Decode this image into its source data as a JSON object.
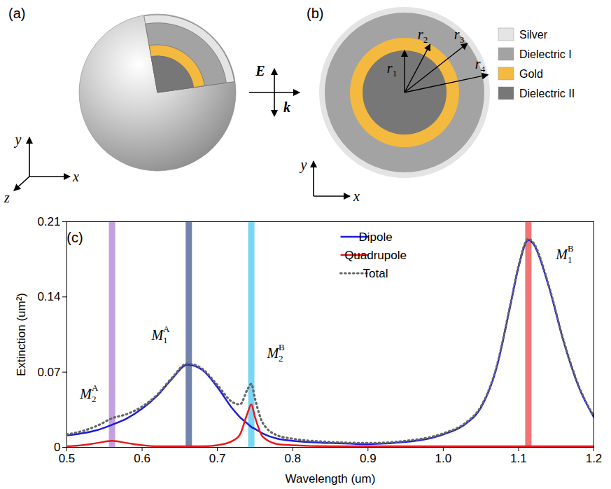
{
  "diagram": {
    "panel_a": {
      "label": "(a)",
      "axes": {
        "x": "x",
        "y": "y",
        "z": "z"
      }
    },
    "incident_wave": {
      "field": "E",
      "wavevector": "k"
    },
    "panel_b": {
      "label": "(b)",
      "axes": {
        "x": "x",
        "y": "y"
      },
      "radii": [
        {
          "text": "r",
          "sub": "1"
        },
        {
          "text": "r",
          "sub": "2"
        },
        {
          "text": "r",
          "sub": "3"
        },
        {
          "text": "r",
          "sub": "4"
        }
      ]
    },
    "materials": [
      {
        "name": "Silver",
        "color": "#e4e4e4"
      },
      {
        "name": "Dielectric I",
        "color": "#a3a3a3"
      },
      {
        "name": "Gold",
        "color": "#f4b93f"
      },
      {
        "name": "Dielectric II",
        "color": "#777777"
      }
    ]
  },
  "chart_data": {
    "type": "line",
    "panel_label": "(c)",
    "xlabel": "Wavelength (um)",
    "ylabel": "Extinction (um²)",
    "xlim": [
      0.5,
      1.2
    ],
    "ylim": [
      0,
      0.21
    ],
    "xticks": [
      0.5,
      0.6,
      0.7,
      0.8,
      0.9,
      {
        "value": 1,
        "label": "1.0"
      },
      1.1,
      1.2
    ],
    "yticks": [
      0,
      0.07,
      0.14,
      0.21
    ],
    "grid": false,
    "legend": "top",
    "x": [
      0.5,
      0.52,
      0.54,
      0.56,
      0.58,
      0.6,
      0.62,
      0.64,
      0.66,
      0.68,
      0.7,
      0.72,
      0.73,
      0.74,
      0.745,
      0.75,
      0.76,
      0.78,
      0.8,
      0.85,
      0.9,
      0.95,
      1.0,
      1.03,
      1.05,
      1.07,
      1.09,
      1.1,
      1.113,
      1.12,
      1.14,
      1.16,
      1.18,
      1.2
    ],
    "series": [
      {
        "name": "Dipole",
        "color": "#1c1ce0",
        "line_style": "solid",
        "values": [
          0.011,
          0.013,
          0.016,
          0.021,
          0.027,
          0.036,
          0.048,
          0.064,
          0.077,
          0.072,
          0.056,
          0.036,
          0.028,
          0.022,
          0.019,
          0.017,
          0.013,
          0.008,
          0.006,
          0.004,
          0.003,
          0.005,
          0.012,
          0.022,
          0.037,
          0.072,
          0.135,
          0.168,
          0.193,
          0.189,
          0.15,
          0.098,
          0.056,
          0.028
        ]
      },
      {
        "name": "Quadrupole",
        "color": "#e8191b",
        "line_style": "solid",
        "values": [
          0.001,
          0.002,
          0.004,
          0.006,
          0.004,
          0.002,
          0.001,
          0.001,
          0.001,
          0.001,
          0.002,
          0.006,
          0.012,
          0.032,
          0.04,
          0.028,
          0.01,
          0.003,
          0.002,
          0.001,
          0.001,
          0.001,
          0.001,
          0.001,
          0.001,
          0.001,
          0.001,
          0.001,
          0.001,
          0.001,
          0.001,
          0.001,
          0.001,
          0.001
        ]
      },
      {
        "name": "Total",
        "color": "#666666",
        "line_style": "dotted",
        "values": [
          0.012,
          0.015,
          0.02,
          0.027,
          0.031,
          0.038,
          0.049,
          0.065,
          0.078,
          0.073,
          0.058,
          0.042,
          0.04,
          0.054,
          0.059,
          0.045,
          0.023,
          0.011,
          0.008,
          0.005,
          0.004,
          0.006,
          0.013,
          0.023,
          0.038,
          0.073,
          0.136,
          0.169,
          0.194,
          0.19,
          0.151,
          0.099,
          0.057,
          0.029
        ]
      }
    ],
    "highlights": [
      {
        "x": 0.56,
        "color": "#b98fdc"
      },
      {
        "x": 0.662,
        "color": "#5b6f9c"
      },
      {
        "x": 0.745,
        "color": "#5fd0f2"
      },
      {
        "x": 1.113,
        "color": "#ef5d5d"
      }
    ],
    "annotations": [
      {
        "text": "M",
        "sub": "2",
        "sup": "A",
        "x": 0.53,
        "y": 0.045
      },
      {
        "text": "M",
        "sub": "1",
        "sup": "A",
        "x": 0.625,
        "y": 0.1
      },
      {
        "text": "M",
        "sub": "2",
        "sup": "B",
        "x": 0.778,
        "y": 0.083
      },
      {
        "text": "M",
        "sub": "1",
        "sup": "B",
        "x": 1.15,
        "y": 0.175
      }
    ]
  }
}
